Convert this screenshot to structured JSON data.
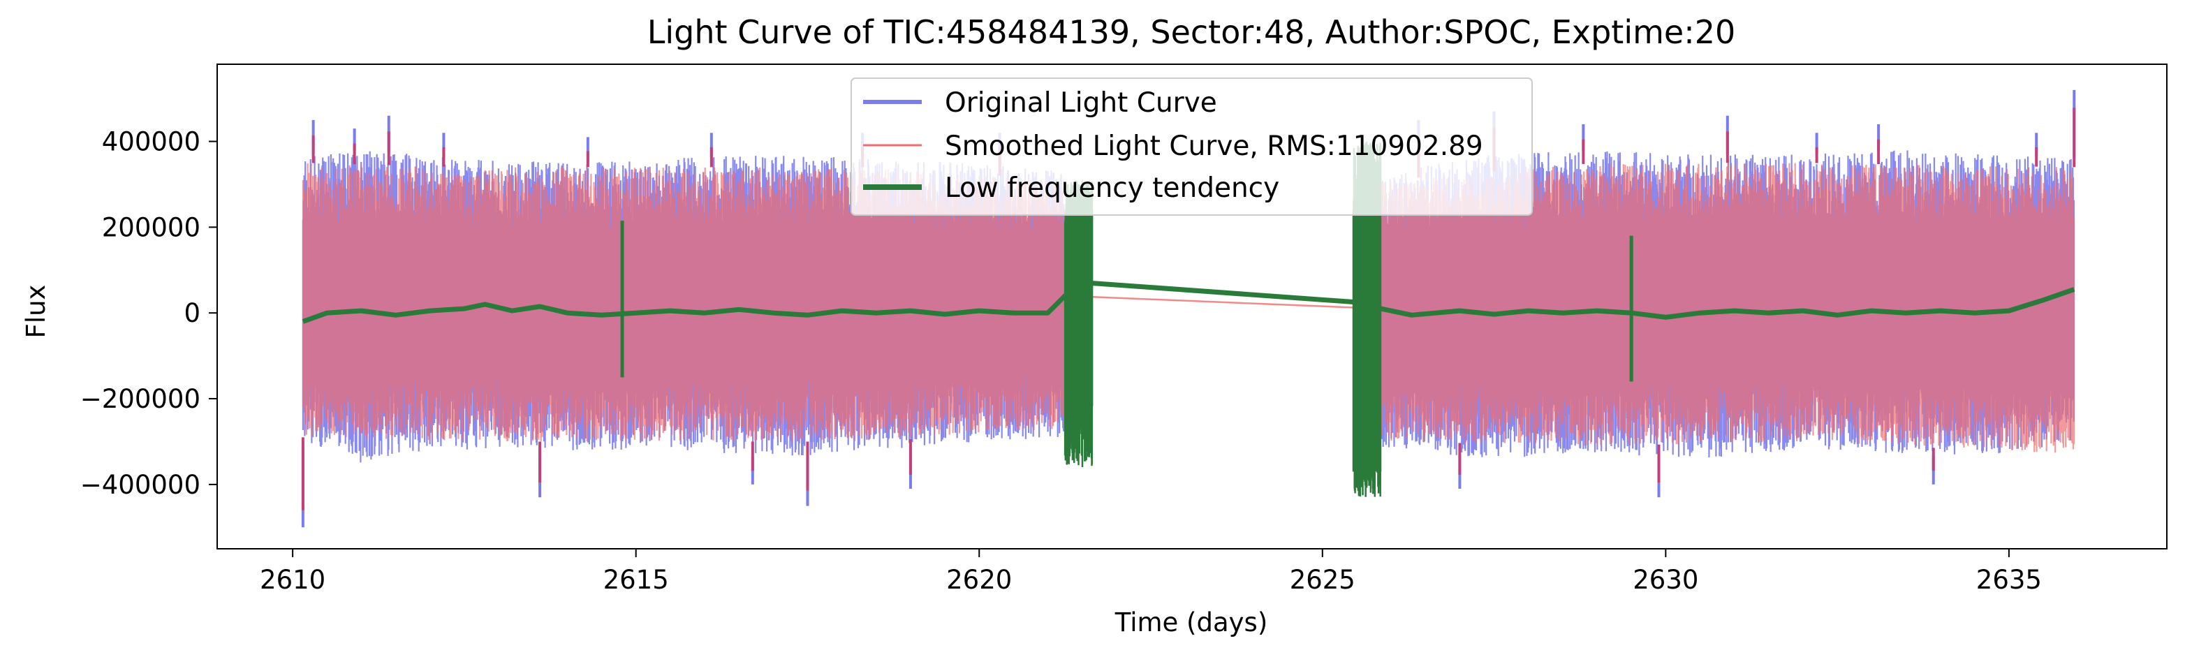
{
  "chart_data": {
    "type": "line",
    "title": "Light Curve of TIC:458484139, Sector:48, Author:SPOC, Exptime:20",
    "xlabel": "Time (days)",
    "ylabel": "Flux",
    "xlim": [
      2608.9,
      2637.3
    ],
    "ylim": [
      -550000,
      580000
    ],
    "xticks": [
      2610,
      2615,
      2620,
      2625,
      2630,
      2635
    ],
    "xtick_labels": [
      "2610",
      "2615",
      "2620",
      "2625",
      "2630",
      "2635"
    ],
    "yticks": [
      -400000,
      -200000,
      0,
      200000,
      400000
    ],
    "ytick_labels": [
      "−400000",
      "−200000",
      "0",
      "200000",
      "400000"
    ],
    "grid": false,
    "legend_position": "top-center",
    "segments": [
      {
        "start": 2610.15,
        "end": 2621.25
      },
      {
        "start": 2625.85,
        "end": 2635.95
      }
    ],
    "series": [
      {
        "name": "Original Light Curve",
        "color": "#7b7bf0",
        "style": "band",
        "band_upper": [
          [
            2610.2,
            370000
          ],
          [
            2611.0,
            380000
          ],
          [
            2612.5,
            360000
          ],
          [
            2614.0,
            350000
          ],
          [
            2615.5,
            360000
          ],
          [
            2617.0,
            370000
          ],
          [
            2618.5,
            360000
          ],
          [
            2620.0,
            350000
          ],
          [
            2621.2,
            330000
          ],
          [
            2626.0,
            330000
          ],
          [
            2627.5,
            370000
          ],
          [
            2629.0,
            380000
          ],
          [
            2630.5,
            370000
          ],
          [
            2632.0,
            370000
          ],
          [
            2633.5,
            380000
          ],
          [
            2635.0,
            370000
          ],
          [
            2635.9,
            360000
          ]
        ],
        "band_lower": [
          [
            2610.2,
            -310000
          ],
          [
            2611.0,
            -350000
          ],
          [
            2612.5,
            -320000
          ],
          [
            2614.0,
            -320000
          ],
          [
            2615.5,
            -320000
          ],
          [
            2617.0,
            -340000
          ],
          [
            2618.5,
            -320000
          ],
          [
            2620.0,
            -300000
          ],
          [
            2621.2,
            -290000
          ],
          [
            2626.0,
            -320000
          ],
          [
            2627.5,
            -340000
          ],
          [
            2629.0,
            -330000
          ],
          [
            2630.5,
            -340000
          ],
          [
            2632.0,
            -320000
          ],
          [
            2633.5,
            -330000
          ],
          [
            2635.0,
            -330000
          ],
          [
            2635.9,
            -300000
          ]
        ],
        "extremes": [
          [
            2610.15,
            -500000
          ],
          [
            2610.3,
            450000
          ],
          [
            2610.9,
            430000
          ],
          [
            2611.4,
            460000
          ],
          [
            2612.2,
            420000
          ],
          [
            2613.6,
            -430000
          ],
          [
            2614.3,
            410000
          ],
          [
            2616.1,
            420000
          ],
          [
            2616.7,
            -400000
          ],
          [
            2617.5,
            -450000
          ],
          [
            2618.3,
            420000
          ],
          [
            2619.0,
            -410000
          ],
          [
            2620.3,
            420000
          ],
          [
            2626.4,
            450000
          ],
          [
            2627.0,
            -410000
          ],
          [
            2627.5,
            470000
          ],
          [
            2628.8,
            440000
          ],
          [
            2629.9,
            -430000
          ],
          [
            2630.9,
            460000
          ],
          [
            2632.2,
            420000
          ],
          [
            2633.1,
            440000
          ],
          [
            2633.9,
            -400000
          ],
          [
            2635.4,
            420000
          ],
          [
            2635.95,
            520000
          ]
        ]
      },
      {
        "name": "Smoothed Light Curve, RMS:110902.89",
        "color": "#f06d6d",
        "style": "band",
        "opacity": 0.7,
        "band_upper": [
          [
            2610.2,
            350000
          ],
          [
            2612.5,
            340000
          ],
          [
            2615.5,
            340000
          ],
          [
            2618.5,
            340000
          ],
          [
            2621.2,
            310000
          ],
          [
            2626.0,
            310000
          ],
          [
            2629.0,
            350000
          ],
          [
            2632.0,
            350000
          ],
          [
            2635.9,
            340000
          ]
        ],
        "band_lower": [
          [
            2610.2,
            -290000
          ],
          [
            2612.5,
            -300000
          ],
          [
            2615.5,
            -300000
          ],
          [
            2618.5,
            -300000
          ],
          [
            2621.2,
            -270000
          ],
          [
            2626.0,
            -300000
          ],
          [
            2629.0,
            -310000
          ],
          [
            2632.0,
            -300000
          ],
          [
            2635.9,
            -330000
          ]
        ],
        "bridge": [
          [
            2621.25,
            40000
          ],
          [
            2625.85,
            10000
          ]
        ]
      },
      {
        "name": "Low frequency tendency",
        "color": "#2a7a3a",
        "style": "line",
        "points": [
          [
            2610.15,
            -20000
          ],
          [
            2610.5,
            0
          ],
          [
            2611.0,
            5000
          ],
          [
            2611.5,
            -5000
          ],
          [
            2612.0,
            5000
          ],
          [
            2612.5,
            10000
          ],
          [
            2612.8,
            20000
          ],
          [
            2613.2,
            5000
          ],
          [
            2613.6,
            15000
          ],
          [
            2614.0,
            0
          ],
          [
            2614.5,
            -5000
          ],
          [
            2615.0,
            0
          ],
          [
            2615.5,
            5000
          ],
          [
            2616.0,
            0
          ],
          [
            2616.5,
            8000
          ],
          [
            2617.0,
            0
          ],
          [
            2617.5,
            -5000
          ],
          [
            2618.0,
            5000
          ],
          [
            2618.5,
            0
          ],
          [
            2619.0,
            5000
          ],
          [
            2619.5,
            -3000
          ],
          [
            2620.0,
            5000
          ],
          [
            2620.5,
            0
          ],
          [
            2621.0,
            0
          ],
          [
            2621.25,
            40000
          ],
          [
            2621.6,
            70000
          ],
          [
            2625.5,
            25000
          ],
          [
            2625.85,
            10000
          ],
          [
            2626.3,
            -5000
          ],
          [
            2627.0,
            5000
          ],
          [
            2627.5,
            -3000
          ],
          [
            2628.0,
            5000
          ],
          [
            2628.5,
            0
          ],
          [
            2629.0,
            5000
          ],
          [
            2629.5,
            0
          ],
          [
            2630.0,
            -10000
          ],
          [
            2630.5,
            0
          ],
          [
            2631.0,
            5000
          ],
          [
            2631.5,
            0
          ],
          [
            2632.0,
            5000
          ],
          [
            2632.5,
            -5000
          ],
          [
            2633.0,
            5000
          ],
          [
            2633.5,
            0
          ],
          [
            2634.0,
            5000
          ],
          [
            2634.5,
            0
          ],
          [
            2635.0,
            5000
          ],
          [
            2635.5,
            30000
          ],
          [
            2635.95,
            55000
          ]
        ],
        "spikes": [
          [
            2614.8,
            -150000,
            215000
          ],
          [
            2629.5,
            -160000,
            180000
          ]
        ],
        "gap_edge_bursts": [
          [
            2621.25,
            2621.65,
            -360000,
            310000
          ],
          [
            2625.45,
            2625.85,
            -430000,
            400000
          ]
        ]
      }
    ]
  }
}
